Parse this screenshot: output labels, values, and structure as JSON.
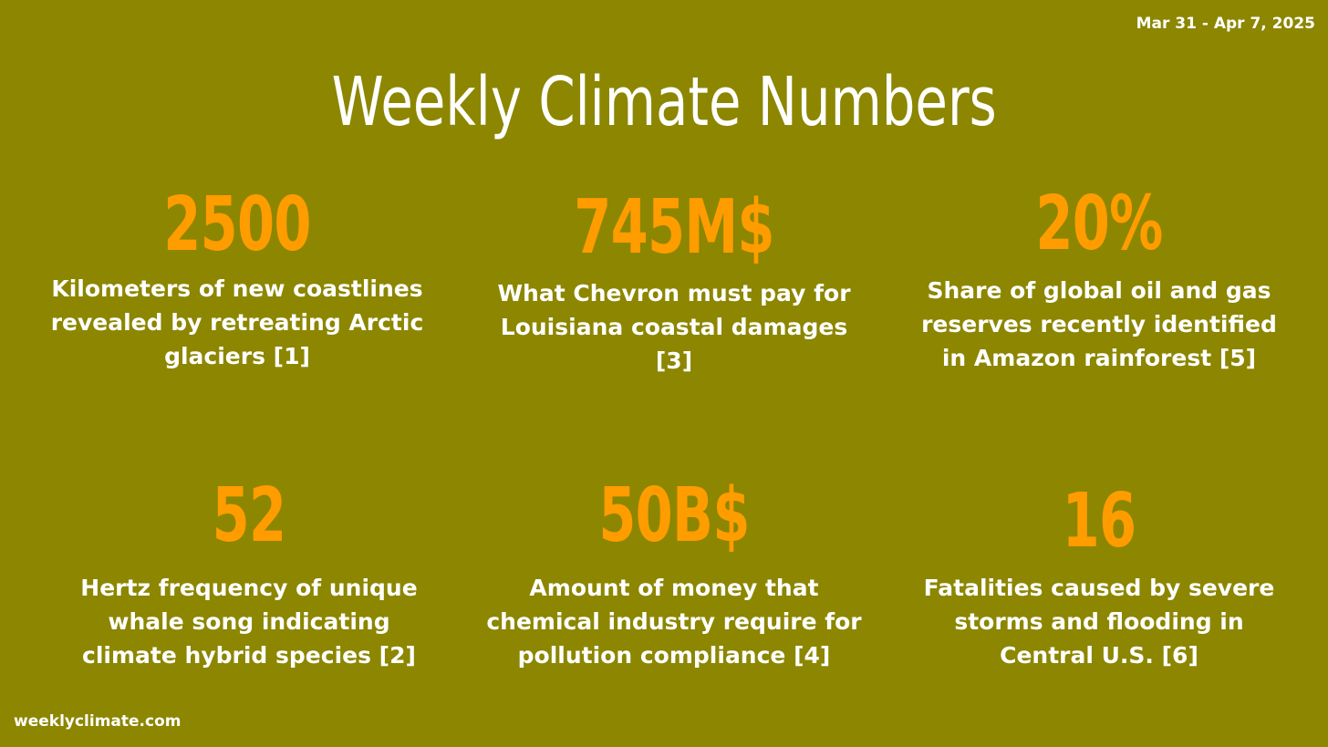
{
  "date_range": "Mar 31 - Apr 7, 2025",
  "title": "Weekly Climate Numbers",
  "stats": [
    {
      "number": "2500",
      "caption": "Kilometers of new coastlines revealed by retreating Arctic glaciers [1]"
    },
    {
      "number": "745M$",
      "caption": "What Chevron must pay for Louisiana coastal damages [3]"
    },
    {
      "number": "20%",
      "caption": "Share of global oil and gas reserves recently identified in Amazon rainforest [5]"
    },
    {
      "number": "52",
      "caption": "Hertz frequency of unique whale song indicating climate hybrid species [2]"
    },
    {
      "number": "50B$",
      "caption": "Amount of money that chemical industry require for pollution compliance [4]"
    },
    {
      "number": "16",
      "caption": "Fatalities caused by severe storms and flooding in Central U.S. [6]"
    }
  ],
  "footer": "weeklyclimate.com",
  "colors": {
    "background": "#8c8600",
    "number": "#ff9c00",
    "text": "#ffffff"
  }
}
